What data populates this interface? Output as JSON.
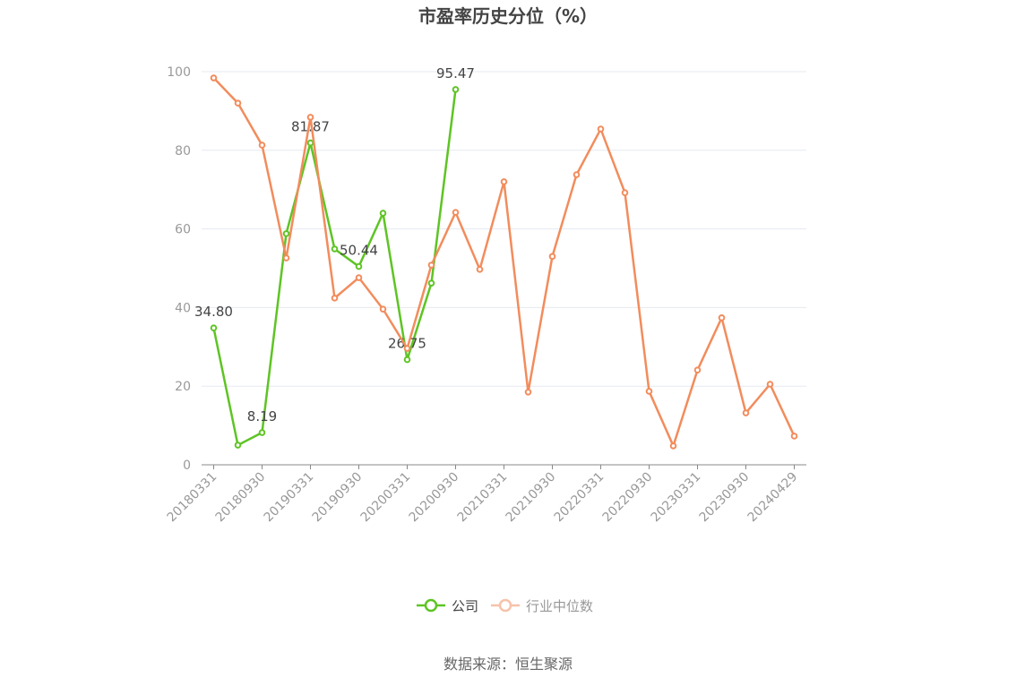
{
  "chart_data": {
    "type": "line",
    "title": "市盈率历史分位（%）",
    "categories": [
      "20180331",
      null,
      "20180930",
      null,
      "20190331",
      null,
      "20190930",
      null,
      "20200331",
      null,
      "20200930",
      null,
      "20210331",
      null,
      "20210930",
      null,
      "20220331",
      null,
      "20220930",
      null,
      "20230331",
      null,
      "20230930",
      null,
      "20240429"
    ],
    "series": [
      {
        "name": "公司",
        "color": "#5ec424",
        "values": [
          34.8,
          5.0,
          8.19,
          58.8,
          81.87,
          54.9,
          50.44,
          64.0,
          26.75,
          46.2,
          95.47,
          null,
          null,
          null,
          null,
          null,
          null,
          null,
          null,
          null,
          null,
          null,
          null,
          null,
          null
        ],
        "value_labels": [
          "34.80",
          null,
          "8.19",
          null,
          "81.87",
          null,
          "50.44",
          null,
          "26.75",
          null,
          "95.47",
          null,
          null,
          null,
          null,
          null,
          null,
          null,
          null,
          null,
          null,
          null,
          null,
          null,
          null
        ]
      },
      {
        "name": "行业中位数",
        "color": "#f28c5c",
        "values": [
          98.4,
          92.0,
          81.3,
          52.6,
          88.4,
          42.4,
          47.6,
          39.6,
          29.6,
          50.8,
          64.2,
          49.7,
          72.0,
          18.5,
          53.0,
          73.8,
          85.4,
          69.2,
          18.7,
          4.8,
          24.1,
          37.4,
          13.2,
          20.5,
          7.3
        ]
      }
    ],
    "ylim": [
      0,
      100
    ],
    "yticks": [
      0,
      20,
      40,
      60,
      80,
      100
    ],
    "grid": true,
    "legend": "bottom",
    "source": "数据来源：恒生聚源"
  }
}
